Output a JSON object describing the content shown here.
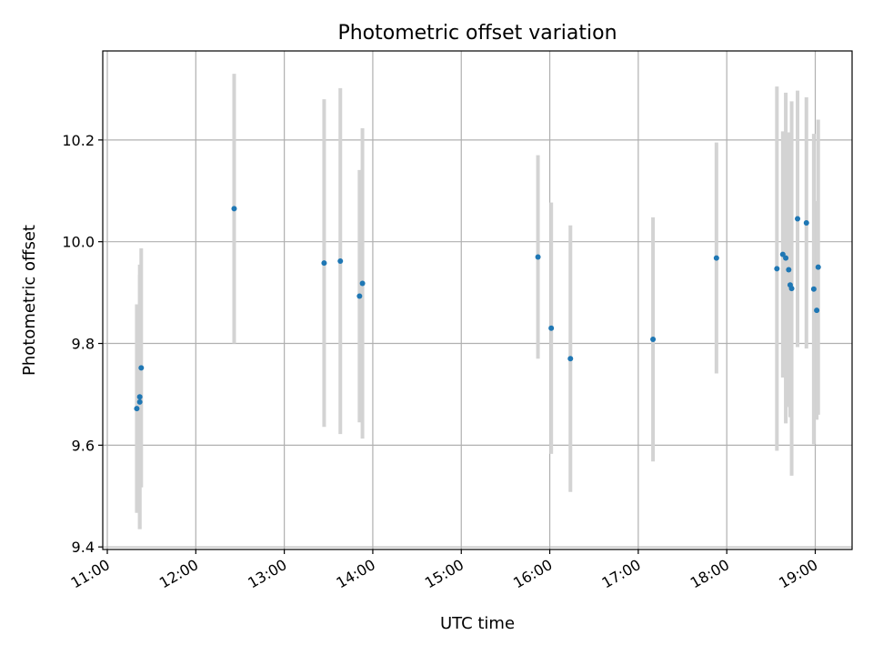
{
  "chart_data": {
    "type": "scatter",
    "title": "Photometric offset variation",
    "xlabel": "UTC time",
    "ylabel": "Photometric offset",
    "x_is_time": true,
    "xlim": [
      "11:00",
      "19:30"
    ],
    "ylim": [
      9.395,
      10.375
    ],
    "grid": true,
    "x_ticks": [
      "11:00",
      "12:00",
      "13:00",
      "14:00",
      "15:00",
      "16:00",
      "17:00",
      "18:00",
      "19:00"
    ],
    "y_ticks": [
      9.4,
      9.6,
      9.8,
      10.0,
      10.2
    ],
    "y_tick_labels": [
      "9.4",
      "9.6",
      "9.8",
      "10.0",
      "10.2"
    ],
    "colors": {
      "point": "#1f77b4",
      "errorbar": "#d3d3d3",
      "grid": "#b0b0b0"
    },
    "points": [
      {
        "t": "11:20",
        "y": 9.672,
        "err": 0.205
      },
      {
        "t": "11:22",
        "y": 9.685,
        "err": 0.25
      },
      {
        "t": "11:22",
        "y": 9.695,
        "err": 0.26
      },
      {
        "t": "11:23",
        "y": 9.752,
        "err": 0.235
      },
      {
        "t": "12:26",
        "y": 10.065,
        "err": 0.265
      },
      {
        "t": "13:27",
        "y": 9.958,
        "err": 0.322
      },
      {
        "t": "13:38",
        "y": 9.962,
        "err": 0.34
      },
      {
        "t": "13:51",
        "y": 9.893,
        "err": 0.248
      },
      {
        "t": "13:53",
        "y": 9.918,
        "err": 0.305
      },
      {
        "t": "15:52",
        "y": 9.97,
        "err": 0.2
      },
      {
        "t": "16:01",
        "y": 9.83,
        "err": 0.247
      },
      {
        "t": "16:14",
        "y": 9.77,
        "err": 0.262
      },
      {
        "t": "17:10",
        "y": 9.808,
        "err": 0.24
      },
      {
        "t": "17:53",
        "y": 9.968,
        "err": 0.227
      },
      {
        "t": "18:34",
        "y": 9.947,
        "err": 0.358
      },
      {
        "t": "18:38",
        "y": 9.975,
        "err": 0.242
      },
      {
        "t": "18:40",
        "y": 9.968,
        "err": 0.325
      },
      {
        "t": "18:42",
        "y": 9.945,
        "err": 0.27
      },
      {
        "t": "18:43",
        "y": 9.915,
        "err": 0.26
      },
      {
        "t": "18:44",
        "y": 9.908,
        "err": 0.368
      },
      {
        "t": "18:48",
        "y": 10.045,
        "err": 0.252
      },
      {
        "t": "18:54",
        "y": 10.037,
        "err": 0.247
      },
      {
        "t": "18:59",
        "y": 9.907,
        "err": 0.305
      },
      {
        "t": "19:01",
        "y": 9.865,
        "err": 0.215
      },
      {
        "t": "19:02",
        "y": 9.95,
        "err": 0.29
      }
    ]
  }
}
